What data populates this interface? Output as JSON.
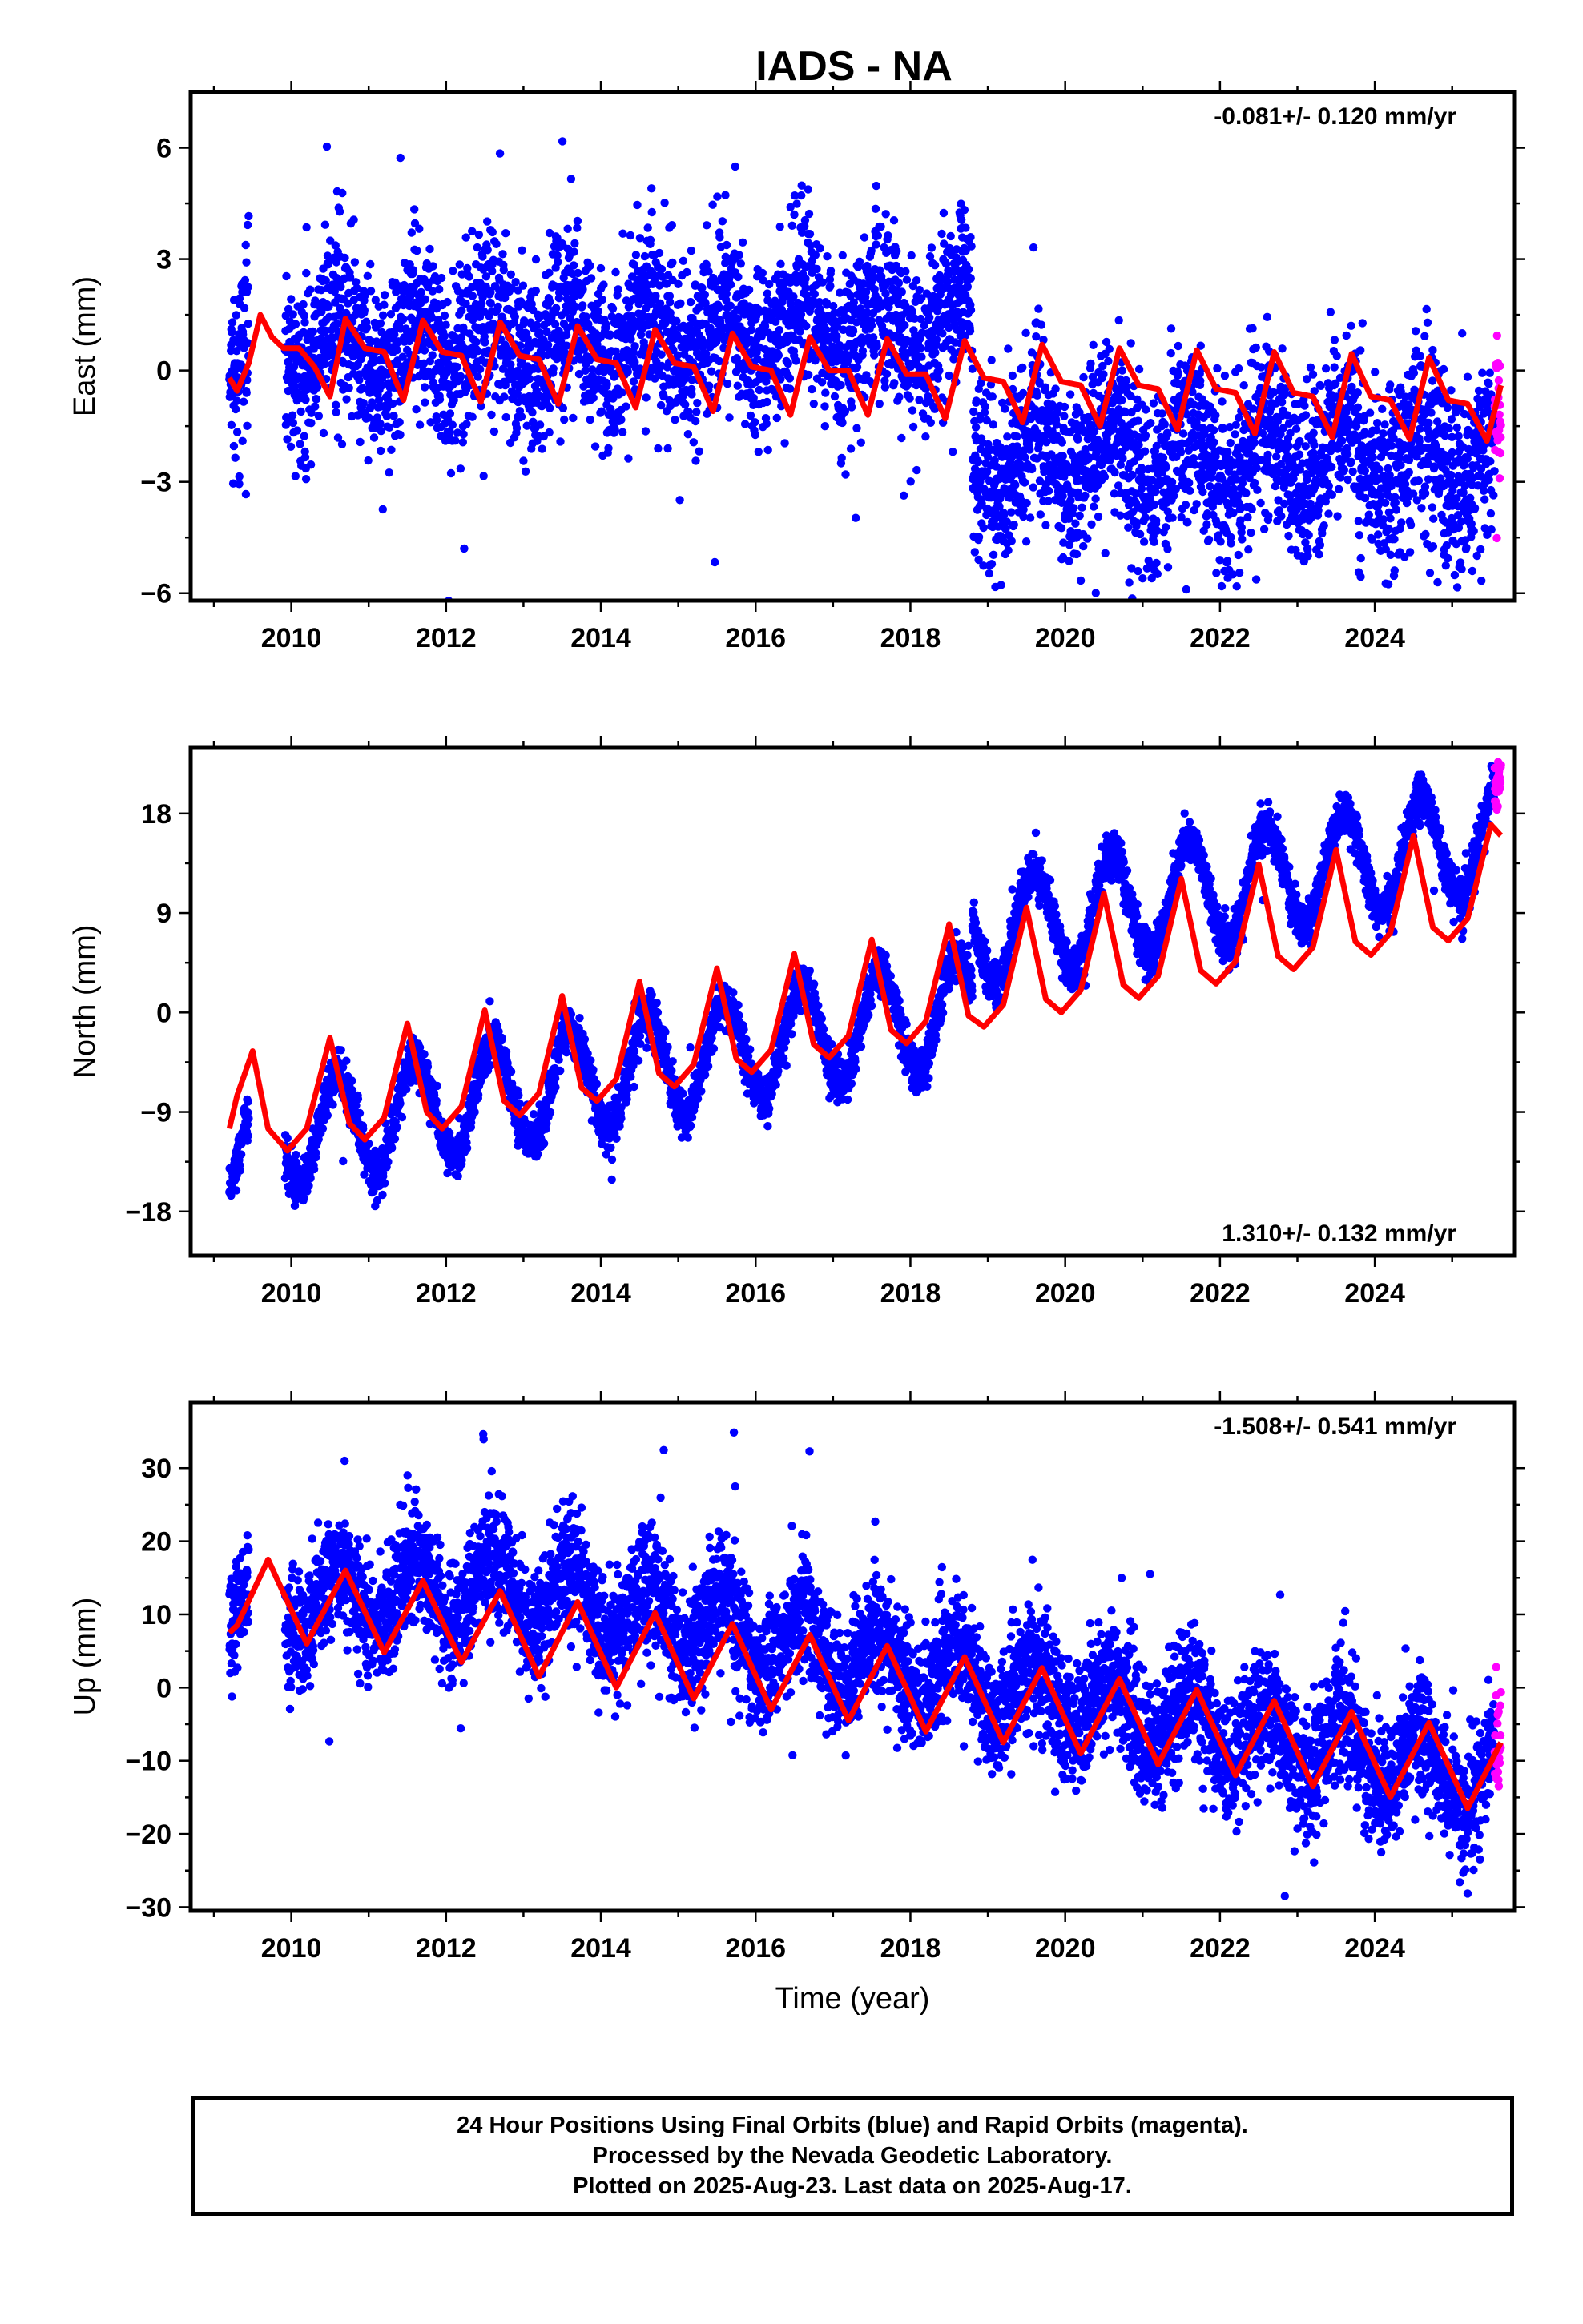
{
  "title": "IADS - NA",
  "colors": {
    "final": "#0000ff",
    "rapid": "#ff00ff",
    "model": "#ff0000",
    "frame": "#000000"
  },
  "chart_data": [
    {
      "type": "scatter",
      "component": "east",
      "ylabel": "East (mm)",
      "rate_text": "-0.081+/- 0.120 mm/yr",
      "rate_position": "top-right",
      "xlim": [
        2008.7,
        2025.8
      ],
      "ylim": [
        -6.2,
        7.5
      ],
      "yticks": [
        -6,
        -3,
        0,
        3,
        6
      ],
      "yticklabels": [
        "−6",
        "−3",
        "0",
        "3",
        "6"
      ],
      "xticks": [
        2010,
        2012,
        2014,
        2016,
        2018,
        2020,
        2022,
        2024
      ],
      "xticklabels": [
        "2010",
        "2012",
        "2014",
        "2016",
        "2018",
        "2020",
        "2022",
        "2024"
      ],
      "data_start": 2009.2,
      "data_gap": [
        2009.45,
        2009.92
      ],
      "data_end": 2025.63,
      "rapid_start": 2025.55,
      "trend": [
        {
          "x": 2009.2,
          "y": 0.5
        },
        {
          "x": 2018.8,
          "y": 1.3
        },
        {
          "x": 2018.8,
          "y": -2.3
        },
        {
          "x": 2025.63,
          "y": -2.3
        }
      ],
      "seasonal_amplitude": 0.9,
      "scatter_sigma": 1.2,
      "model": [
        {
          "x": 2009.2,
          "y": -0.2
        },
        {
          "x": 2009.3,
          "y": -0.55
        },
        {
          "x": 2009.45,
          "y": 0.2
        },
        {
          "x": 2009.6,
          "y": 1.5
        },
        {
          "x": 2009.75,
          "y": 0.9
        },
        {
          "x": 2009.9,
          "y": 0.6
        },
        {
          "x": 2010.1,
          "y": 0.6
        },
        {
          "x": 2010.3,
          "y": 0.1
        },
        {
          "x": 2010.5,
          "y": -0.7
        },
        {
          "x": 2010.7,
          "y": 1.4
        },
        {
          "x": 2010.95,
          "y": 0.6
        },
        {
          "x": 2011.2,
          "y": 0.5
        },
        {
          "x": 2011.45,
          "y": -0.8
        },
        {
          "x": 2011.7,
          "y": 1.35
        },
        {
          "x": 2011.95,
          "y": 0.5
        },
        {
          "x": 2012.2,
          "y": 0.4
        },
        {
          "x": 2012.45,
          "y": -0.85
        },
        {
          "x": 2012.7,
          "y": 1.3
        },
        {
          "x": 2012.95,
          "y": 0.4
        },
        {
          "x": 2013.2,
          "y": 0.3
        },
        {
          "x": 2013.45,
          "y": -0.9
        },
        {
          "x": 2013.7,
          "y": 1.2
        },
        {
          "x": 2013.95,
          "y": 0.3
        },
        {
          "x": 2014.2,
          "y": 0.2
        },
        {
          "x": 2014.45,
          "y": -1.0
        },
        {
          "x": 2014.7,
          "y": 1.1
        },
        {
          "x": 2014.95,
          "y": 0.2
        },
        {
          "x": 2015.2,
          "y": 0.1
        },
        {
          "x": 2015.45,
          "y": -1.1
        },
        {
          "x": 2015.7,
          "y": 1.0
        },
        {
          "x": 2015.95,
          "y": 0.1
        },
        {
          "x": 2016.2,
          "y": 0.0
        },
        {
          "x": 2016.45,
          "y": -1.2
        },
        {
          "x": 2016.7,
          "y": 0.9
        },
        {
          "x": 2016.95,
          "y": 0.0
        },
        {
          "x": 2017.2,
          "y": 0.0
        },
        {
          "x": 2017.45,
          "y": -1.2
        },
        {
          "x": 2017.7,
          "y": 0.85
        },
        {
          "x": 2017.95,
          "y": -0.1
        },
        {
          "x": 2018.2,
          "y": -0.1
        },
        {
          "x": 2018.45,
          "y": -1.3
        },
        {
          "x": 2018.7,
          "y": 0.8
        },
        {
          "x": 2018.95,
          "y": -0.2
        },
        {
          "x": 2019.2,
          "y": -0.3
        },
        {
          "x": 2019.45,
          "y": -1.4
        },
        {
          "x": 2019.7,
          "y": 0.7
        },
        {
          "x": 2019.95,
          "y": -0.3
        },
        {
          "x": 2020.2,
          "y": -0.4
        },
        {
          "x": 2020.45,
          "y": -1.5
        },
        {
          "x": 2020.7,
          "y": 0.6
        },
        {
          "x": 2020.95,
          "y": -0.4
        },
        {
          "x": 2021.2,
          "y": -0.5
        },
        {
          "x": 2021.45,
          "y": -1.6
        },
        {
          "x": 2021.7,
          "y": 0.55
        },
        {
          "x": 2021.95,
          "y": -0.5
        },
        {
          "x": 2022.2,
          "y": -0.6
        },
        {
          "x": 2022.45,
          "y": -1.7
        },
        {
          "x": 2022.7,
          "y": 0.5
        },
        {
          "x": 2022.95,
          "y": -0.6
        },
        {
          "x": 2023.2,
          "y": -0.7
        },
        {
          "x": 2023.45,
          "y": -1.8
        },
        {
          "x": 2023.7,
          "y": 0.45
        },
        {
          "x": 2023.95,
          "y": -0.7
        },
        {
          "x": 2024.2,
          "y": -0.8
        },
        {
          "x": 2024.45,
          "y": -1.85
        },
        {
          "x": 2024.7,
          "y": 0.35
        },
        {
          "x": 2024.95,
          "y": -0.8
        },
        {
          "x": 2025.2,
          "y": -0.9
        },
        {
          "x": 2025.45,
          "y": -1.9
        },
        {
          "x": 2025.63,
          "y": -0.4
        }
      ]
    },
    {
      "type": "scatter",
      "component": "north",
      "ylabel": "North (mm)",
      "rate_text": "1.310+/- 0.132 mm/yr",
      "rate_position": "bottom-right",
      "xlim": [
        2008.7,
        2025.8
      ],
      "ylim": [
        -22,
        24
      ],
      "yticks": [
        -18,
        -9,
        0,
        9,
        18
      ],
      "yticklabels": [
        "−18",
        "−9",
        "0",
        "9",
        "18"
      ],
      "xticks": [
        2010,
        2012,
        2014,
        2016,
        2018,
        2020,
        2022,
        2024
      ],
      "xticklabels": [
        "2010",
        "2012",
        "2014",
        "2016",
        "2018",
        "2020",
        "2022",
        "2024"
      ],
      "data_start": 2009.2,
      "data_gap": [
        2009.45,
        2009.92
      ],
      "data_end": 2025.63,
      "rapid_start": 2025.55,
      "trend": [
        {
          "x": 2009.2,
          "y": -12.0
        },
        {
          "x": 2018.8,
          "y": 0.5
        },
        {
          "x": 2018.8,
          "y": 7.0
        },
        {
          "x": 2025.63,
          "y": 16.0
        }
      ],
      "seasonal_amplitude": 4.8,
      "scatter_sigma": 1.0,
      "model": [
        {
          "x": 2009.2,
          "y": -10.5
        },
        {
          "x": 2009.3,
          "y": -7.5
        },
        {
          "x": 2009.5,
          "y": -3.5
        },
        {
          "x": 2009.7,
          "y": -10.5
        },
        {
          "x": 2009.95,
          "y": -12.5
        },
        {
          "x": 2010.2,
          "y": -10.5
        },
        {
          "x": 2010.5,
          "y": -2.3
        },
        {
          "x": 2010.75,
          "y": -10.0
        },
        {
          "x": 2010.95,
          "y": -11.5
        },
        {
          "x": 2011.2,
          "y": -9.5
        },
        {
          "x": 2011.5,
          "y": -1.0
        },
        {
          "x": 2011.75,
          "y": -9.0
        },
        {
          "x": 2011.95,
          "y": -10.5
        },
        {
          "x": 2012.2,
          "y": -8.5
        },
        {
          "x": 2012.5,
          "y": 0.2
        },
        {
          "x": 2012.75,
          "y": -8.0
        },
        {
          "x": 2012.95,
          "y": -9.3
        },
        {
          "x": 2013.2,
          "y": -7.3
        },
        {
          "x": 2013.5,
          "y": 1.5
        },
        {
          "x": 2013.75,
          "y": -6.8
        },
        {
          "x": 2013.95,
          "y": -8.0
        },
        {
          "x": 2014.2,
          "y": -6.0
        },
        {
          "x": 2014.5,
          "y": 2.8
        },
        {
          "x": 2014.75,
          "y": -5.5
        },
        {
          "x": 2014.95,
          "y": -6.7
        },
        {
          "x": 2015.2,
          "y": -4.7
        },
        {
          "x": 2015.5,
          "y": 4.0
        },
        {
          "x": 2015.75,
          "y": -4.2
        },
        {
          "x": 2015.95,
          "y": -5.4
        },
        {
          "x": 2016.2,
          "y": -3.4
        },
        {
          "x": 2016.5,
          "y": 5.3
        },
        {
          "x": 2016.75,
          "y": -2.9
        },
        {
          "x": 2016.95,
          "y": -4.1
        },
        {
          "x": 2017.2,
          "y": -2.1
        },
        {
          "x": 2017.5,
          "y": 6.6
        },
        {
          "x": 2017.75,
          "y": -1.6
        },
        {
          "x": 2017.95,
          "y": -2.8
        },
        {
          "x": 2018.2,
          "y": -0.8
        },
        {
          "x": 2018.5,
          "y": 8.0
        },
        {
          "x": 2018.75,
          "y": -0.3
        },
        {
          "x": 2018.95,
          "y": -1.3
        },
        {
          "x": 2019.2,
          "y": 0.7
        },
        {
          "x": 2019.5,
          "y": 9.5
        },
        {
          "x": 2019.75,
          "y": 1.2
        },
        {
          "x": 2019.95,
          "y": 0.0
        },
        {
          "x": 2020.2,
          "y": 2.0
        },
        {
          "x": 2020.5,
          "y": 10.8
        },
        {
          "x": 2020.75,
          "y": 2.5
        },
        {
          "x": 2020.95,
          "y": 1.3
        },
        {
          "x": 2021.2,
          "y": 3.3
        },
        {
          "x": 2021.5,
          "y": 12.1
        },
        {
          "x": 2021.75,
          "y": 3.8
        },
        {
          "x": 2021.95,
          "y": 2.6
        },
        {
          "x": 2022.2,
          "y": 4.6
        },
        {
          "x": 2022.5,
          "y": 13.4
        },
        {
          "x": 2022.75,
          "y": 5.1
        },
        {
          "x": 2022.95,
          "y": 3.9
        },
        {
          "x": 2023.2,
          "y": 5.9
        },
        {
          "x": 2023.5,
          "y": 14.7
        },
        {
          "x": 2023.75,
          "y": 6.4
        },
        {
          "x": 2023.95,
          "y": 5.2
        },
        {
          "x": 2024.2,
          "y": 7.2
        },
        {
          "x": 2024.5,
          "y": 16.0
        },
        {
          "x": 2024.75,
          "y": 7.7
        },
        {
          "x": 2024.95,
          "y": 6.5
        },
        {
          "x": 2025.2,
          "y": 8.5
        },
        {
          "x": 2025.5,
          "y": 17.0
        },
        {
          "x": 2025.63,
          "y": 16.0
        }
      ]
    },
    {
      "type": "scatter",
      "component": "up",
      "ylabel": "Up (mm)",
      "xlabel": "Time (year)",
      "rate_text": "-1.508+/- 0.541 mm/yr",
      "rate_position": "top-right",
      "xlim": [
        2008.7,
        2025.8
      ],
      "ylim": [
        -30.5,
        39
      ],
      "yticks": [
        -30,
        -20,
        -10,
        0,
        10,
        20,
        30
      ],
      "yticklabels": [
        "−30",
        "−20",
        "−10",
        "0",
        "10",
        "20",
        "30"
      ],
      "xticks": [
        2010,
        2012,
        2014,
        2016,
        2018,
        2020,
        2022,
        2024
      ],
      "xticklabels": [
        "2010",
        "2012",
        "2014",
        "2016",
        "2018",
        "2020",
        "2022",
        "2024"
      ],
      "data_start": 2009.2,
      "data_gap": [
        2009.45,
        2009.92
      ],
      "data_end": 2025.63,
      "rapid_start": 2025.55,
      "trend": [
        {
          "x": 2009.2,
          "y": 11.0
        },
        {
          "x": 2012.7,
          "y": 14.0
        },
        {
          "x": 2025.63,
          "y": -13.0
        }
      ],
      "seasonal_amplitude": 4.5,
      "scatter_sigma": 4.2,
      "model": [
        {
          "x": 2009.2,
          "y": 7.5
        },
        {
          "x": 2009.3,
          "y": 8.5
        },
        {
          "x": 2009.7,
          "y": 17.5
        },
        {
          "x": 2010.2,
          "y": 6.0
        },
        {
          "x": 2010.7,
          "y": 16.0
        },
        {
          "x": 2011.2,
          "y": 4.8
        },
        {
          "x": 2011.7,
          "y": 14.6
        },
        {
          "x": 2012.2,
          "y": 3.5
        },
        {
          "x": 2012.7,
          "y": 13.2
        },
        {
          "x": 2013.2,
          "y": 1.5
        },
        {
          "x": 2013.7,
          "y": 11.7
        },
        {
          "x": 2014.2,
          "y": 0.0
        },
        {
          "x": 2014.7,
          "y": 10.2
        },
        {
          "x": 2015.2,
          "y": -1.5
        },
        {
          "x": 2015.7,
          "y": 8.7
        },
        {
          "x": 2016.2,
          "y": -3.0
        },
        {
          "x": 2016.7,
          "y": 7.2
        },
        {
          "x": 2017.2,
          "y": -4.5
        },
        {
          "x": 2017.7,
          "y": 5.7
        },
        {
          "x": 2018.2,
          "y": -6.0
        },
        {
          "x": 2018.7,
          "y": 4.2
        },
        {
          "x": 2019.2,
          "y": -7.5
        },
        {
          "x": 2019.7,
          "y": 2.7
        },
        {
          "x": 2020.2,
          "y": -9.0
        },
        {
          "x": 2020.7,
          "y": 1.2
        },
        {
          "x": 2021.2,
          "y": -10.5
        },
        {
          "x": 2021.7,
          "y": -0.3
        },
        {
          "x": 2022.2,
          "y": -12.0
        },
        {
          "x": 2022.7,
          "y": -1.8
        },
        {
          "x": 2023.2,
          "y": -13.5
        },
        {
          "x": 2023.7,
          "y": -3.3
        },
        {
          "x": 2024.2,
          "y": -15.0
        },
        {
          "x": 2024.7,
          "y": -4.8
        },
        {
          "x": 2025.2,
          "y": -16.5
        },
        {
          "x": 2025.63,
          "y": -7.5
        }
      ]
    }
  ],
  "caption": {
    "line1": "24 Hour Positions Using Final Orbits (blue) and Rapid Orbits (magenta).",
    "line2": "Processed by the Nevada Geodetic Laboratory.",
    "line3": "Plotted on 2025-Aug-23. Last data on 2025-Aug-17."
  }
}
